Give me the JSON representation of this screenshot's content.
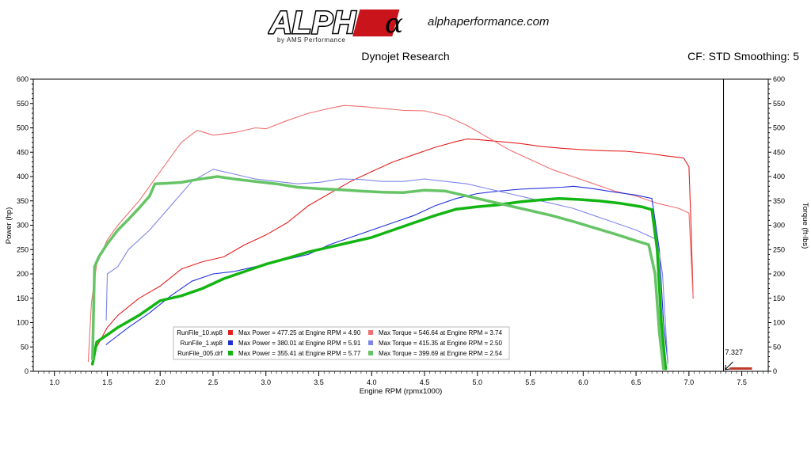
{
  "header": {
    "logo_text": "ALPHA",
    "logo_symbol": "α",
    "logo_sub": "by AMS Performance",
    "website": "alphaperformance.com",
    "title": "Dynojet Research",
    "subtitle": "CF: STD Smoothing: 5"
  },
  "colors": {
    "run10_power": "#e32020",
    "run10_torque": "#f07070",
    "run1_power": "#1f2fd8",
    "run1_torque": "#7f86e8",
    "run005_power": "#12b512",
    "run005_torque": "#66c466"
  },
  "chart_data": {
    "type": "line",
    "xlabel": "Engine RPM (rpmx1000)",
    "ylabel_left": "Power (hp)",
    "ylabel_right": "Torque (ft-lbs)",
    "xlim": [
      0.8,
      7.75
    ],
    "ylim": [
      0,
      600
    ],
    "x_ticks": [
      "1.0",
      "1.5",
      "2.0",
      "2.5",
      "3.0",
      "3.5",
      "4.0",
      "4.5",
      "5.0",
      "5.5",
      "6.0",
      "6.5",
      "7.0",
      "7.5"
    ],
    "y_ticks": [
      "0",
      "50",
      "100",
      "150",
      "200",
      "250",
      "300",
      "350",
      "400",
      "450",
      "500",
      "550",
      "600"
    ],
    "grid": false,
    "legend_position": "bottom-left",
    "marker": {
      "x": 7.327,
      "label": "7.327"
    },
    "series": [
      {
        "name": "RunFile_10.wp8",
        "measure": "power",
        "style": "thin",
        "points": [
          [
            1.35,
            15
          ],
          [
            1.4,
            50
          ],
          [
            1.5,
            90
          ],
          [
            1.6,
            115
          ],
          [
            1.8,
            150
          ],
          [
            2.0,
            175
          ],
          [
            2.2,
            210
          ],
          [
            2.4,
            225
          ],
          [
            2.6,
            235
          ],
          [
            2.8,
            260
          ],
          [
            3.0,
            280
          ],
          [
            3.2,
            305
          ],
          [
            3.4,
            340
          ],
          [
            3.6,
            365
          ],
          [
            3.8,
            390
          ],
          [
            4.0,
            410
          ],
          [
            4.2,
            430
          ],
          [
            4.4,
            445
          ],
          [
            4.6,
            460
          ],
          [
            4.8,
            472
          ],
          [
            4.9,
            477
          ],
          [
            5.0,
            476
          ],
          [
            5.2,
            472
          ],
          [
            5.4,
            468
          ],
          [
            5.6,
            462
          ],
          [
            5.8,
            458
          ],
          [
            6.0,
            455
          ],
          [
            6.2,
            453
          ],
          [
            6.4,
            452
          ],
          [
            6.6,
            448
          ],
          [
            6.8,
            442
          ],
          [
            6.95,
            438
          ],
          [
            7.0,
            420
          ],
          [
            7.02,
            300
          ],
          [
            7.04,
            150
          ]
        ]
      },
      {
        "name": "RunFile_10.wp8",
        "measure": "torque",
        "style": "thin",
        "points": [
          [
            1.32,
            20
          ],
          [
            1.35,
            140
          ],
          [
            1.4,
            220
          ],
          [
            1.5,
            270
          ],
          [
            1.6,
            300
          ],
          [
            1.8,
            350
          ],
          [
            2.0,
            410
          ],
          [
            2.2,
            470
          ],
          [
            2.35,
            495
          ],
          [
            2.5,
            485
          ],
          [
            2.7,
            490
          ],
          [
            2.9,
            500
          ],
          [
            3.0,
            498
          ],
          [
            3.2,
            515
          ],
          [
            3.4,
            530
          ],
          [
            3.6,
            540
          ],
          [
            3.74,
            546
          ],
          [
            3.9,
            544
          ],
          [
            4.1,
            540
          ],
          [
            4.3,
            536
          ],
          [
            4.5,
            535
          ],
          [
            4.7,
            525
          ],
          [
            4.9,
            505
          ],
          [
            5.1,
            480
          ],
          [
            5.3,
            455
          ],
          [
            5.5,
            435
          ],
          [
            5.7,
            415
          ],
          [
            5.9,
            400
          ],
          [
            6.1,
            385
          ],
          [
            6.3,
            370
          ],
          [
            6.5,
            360
          ],
          [
            6.7,
            345
          ],
          [
            6.9,
            335
          ],
          [
            7.0,
            325
          ],
          [
            7.04,
            150
          ]
        ]
      },
      {
        "name": "RunFile_1.wp8",
        "measure": "power",
        "style": "thin",
        "points": [
          [
            1.49,
            55
          ],
          [
            1.55,
            65
          ],
          [
            1.7,
            90
          ],
          [
            1.9,
            120
          ],
          [
            2.1,
            155
          ],
          [
            2.3,
            185
          ],
          [
            2.5,
            200
          ],
          [
            2.7,
            205
          ],
          [
            2.9,
            215
          ],
          [
            3.0,
            220
          ],
          [
            3.2,
            230
          ],
          [
            3.4,
            240
          ],
          [
            3.6,
            260
          ],
          [
            3.8,
            275
          ],
          [
            4.0,
            290
          ],
          [
            4.2,
            305
          ],
          [
            4.4,
            320
          ],
          [
            4.6,
            340
          ],
          [
            4.8,
            355
          ],
          [
            5.0,
            365
          ],
          [
            5.2,
            370
          ],
          [
            5.4,
            374
          ],
          [
            5.6,
            376
          ],
          [
            5.8,
            378
          ],
          [
            5.91,
            380
          ],
          [
            6.1,
            375
          ],
          [
            6.3,
            368
          ],
          [
            6.5,
            362
          ],
          [
            6.65,
            355
          ],
          [
            6.72,
            250
          ],
          [
            6.76,
            100
          ],
          [
            6.8,
            20
          ]
        ]
      },
      {
        "name": "RunFile_1.wp8",
        "measure": "torque",
        "style": "thin",
        "points": [
          [
            1.49,
            105
          ],
          [
            1.5,
            200
          ],
          [
            1.6,
            215
          ],
          [
            1.7,
            250
          ],
          [
            1.9,
            290
          ],
          [
            2.1,
            340
          ],
          [
            2.3,
            390
          ],
          [
            2.5,
            415
          ],
          [
            2.7,
            405
          ],
          [
            2.9,
            395
          ],
          [
            3.1,
            390
          ],
          [
            3.3,
            385
          ],
          [
            3.5,
            388
          ],
          [
            3.7,
            395
          ],
          [
            3.9,
            394
          ],
          [
            4.1,
            390
          ],
          [
            4.3,
            390
          ],
          [
            4.5,
            395
          ],
          [
            4.7,
            390
          ],
          [
            4.9,
            385
          ],
          [
            5.1,
            375
          ],
          [
            5.3,
            365
          ],
          [
            5.5,
            355
          ],
          [
            5.7,
            345
          ],
          [
            5.9,
            335
          ],
          [
            6.1,
            320
          ],
          [
            6.3,
            305
          ],
          [
            6.5,
            290
          ],
          [
            6.7,
            270
          ],
          [
            6.75,
            200
          ],
          [
            6.8,
            15
          ]
        ]
      },
      {
        "name": "RunFile_005.drf",
        "measure": "power",
        "style": "thick",
        "points": [
          [
            1.36,
            15
          ],
          [
            1.4,
            60
          ],
          [
            1.5,
            75
          ],
          [
            1.6,
            90
          ],
          [
            1.8,
            115
          ],
          [
            2.0,
            145
          ],
          [
            2.2,
            155
          ],
          [
            2.4,
            170
          ],
          [
            2.6,
            190
          ],
          [
            2.8,
            205
          ],
          [
            3.0,
            220
          ],
          [
            3.2,
            232
          ],
          [
            3.4,
            245
          ],
          [
            3.6,
            255
          ],
          [
            3.8,
            265
          ],
          [
            4.0,
            275
          ],
          [
            4.2,
            290
          ],
          [
            4.4,
            305
          ],
          [
            4.6,
            320
          ],
          [
            4.8,
            333
          ],
          [
            5.0,
            338
          ],
          [
            5.2,
            342
          ],
          [
            5.4,
            348
          ],
          [
            5.6,
            352
          ],
          [
            5.77,
            355
          ],
          [
            5.95,
            353
          ],
          [
            6.15,
            350
          ],
          [
            6.35,
            345
          ],
          [
            6.55,
            338
          ],
          [
            6.65,
            332
          ],
          [
            6.7,
            250
          ],
          [
            6.74,
            100
          ],
          [
            6.78,
            5
          ]
        ]
      },
      {
        "name": "RunFile_005.drf",
        "measure": "torque",
        "style": "thick",
        "points": [
          [
            1.36,
            25
          ],
          [
            1.38,
            215
          ],
          [
            1.42,
            235
          ],
          [
            1.5,
            262
          ],
          [
            1.6,
            290
          ],
          [
            1.7,
            312
          ],
          [
            1.8,
            335
          ],
          [
            1.9,
            360
          ],
          [
            1.95,
            385
          ],
          [
            2.05,
            386
          ],
          [
            2.2,
            388
          ],
          [
            2.35,
            394
          ],
          [
            2.54,
            400
          ],
          [
            2.7,
            395
          ],
          [
            2.9,
            390
          ],
          [
            3.1,
            385
          ],
          [
            3.3,
            378
          ],
          [
            3.5,
            375
          ],
          [
            3.7,
            373
          ],
          [
            3.9,
            370
          ],
          [
            4.1,
            368
          ],
          [
            4.3,
            367
          ],
          [
            4.5,
            372
          ],
          [
            4.7,
            370
          ],
          [
            4.9,
            360
          ],
          [
            5.1,
            350
          ],
          [
            5.3,
            340
          ],
          [
            5.5,
            330
          ],
          [
            5.7,
            320
          ],
          [
            5.9,
            308
          ],
          [
            6.1,
            295
          ],
          [
            6.3,
            282
          ],
          [
            6.5,
            268
          ],
          [
            6.62,
            260
          ],
          [
            6.68,
            200
          ],
          [
            6.72,
            80
          ],
          [
            6.76,
            5
          ]
        ]
      }
    ],
    "legend": [
      {
        "file": "RunFile_10.wp8",
        "power_text": "Max Power = 477.25 at Engine RPM = 4.90",
        "torque_text": "Max Torque = 546.64 at Engine RPM = 3.74"
      },
      {
        "file": "RunFile_1.wp8",
        "power_text": "Max Power = 380.01 at Engine RPM = 5.91",
        "torque_text": "Max Torque = 415.35 at Engine RPM = 2.50"
      },
      {
        "file": "RunFile_005.drf",
        "power_text": "Max Power = 355.41 at Engine RPM = 5.77",
        "torque_text": "Max Torque = 399.69 at Engine RPM = 2.54"
      }
    ]
  }
}
